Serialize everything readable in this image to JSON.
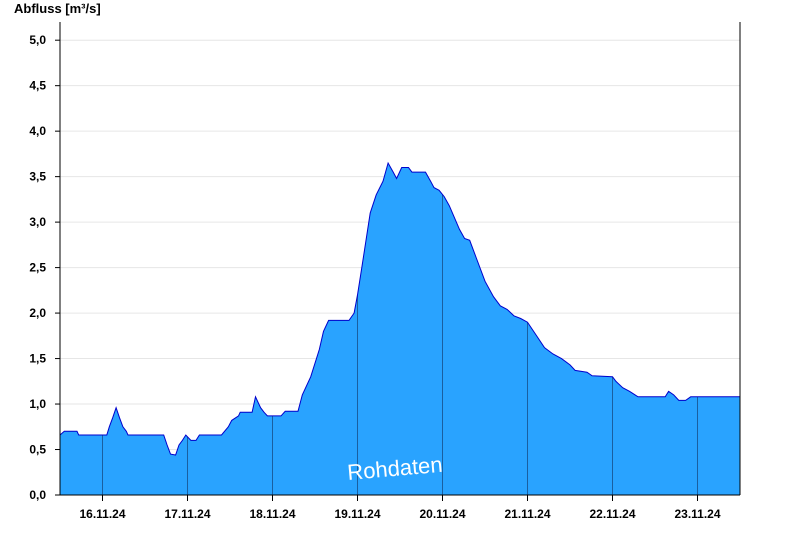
{
  "chart_data": {
    "type": "area",
    "ylabel": "Abfluss [m³/s]",
    "ylim": [
      0,
      5.2
    ],
    "y_ticks": [
      "0,0",
      "0,5",
      "1,0",
      "1,5",
      "2,0",
      "2,5",
      "3,0",
      "3,5",
      "4,0",
      "4,5",
      "5,0"
    ],
    "x_ticks": [
      "16.11.24",
      "17.11.24",
      "18.11.24",
      "19.11.24",
      "20.11.24",
      "21.11.24",
      "22.11.24",
      "23.11.24"
    ],
    "x_range_days": [
      15.5,
      23.5
    ],
    "grid": "horizontal",
    "annotation": "Rohdaten",
    "colors": {
      "fill": "#29a3ff",
      "line": "#0000cc",
      "day_divider": "#1a5fa0",
      "grid": "#e6e6e6"
    },
    "series": [
      {
        "points": [
          [
            15.5,
            0.66
          ],
          [
            15.55,
            0.7
          ],
          [
            15.7,
            0.7
          ],
          [
            15.72,
            0.66
          ],
          [
            16.05,
            0.66
          ],
          [
            16.08,
            0.75
          ],
          [
            16.12,
            0.85
          ],
          [
            16.16,
            0.96
          ],
          [
            16.2,
            0.85
          ],
          [
            16.24,
            0.75
          ],
          [
            16.28,
            0.7
          ],
          [
            16.3,
            0.66
          ],
          [
            16.5,
            0.66
          ],
          [
            16.65,
            0.66
          ],
          [
            16.72,
            0.66
          ],
          [
            16.76,
            0.55
          ],
          [
            16.8,
            0.45
          ],
          [
            16.86,
            0.44
          ],
          [
            16.9,
            0.55
          ],
          [
            16.94,
            0.6
          ],
          [
            16.98,
            0.66
          ],
          [
            17.04,
            0.6
          ],
          [
            17.1,
            0.6
          ],
          [
            17.14,
            0.66
          ],
          [
            17.4,
            0.66
          ],
          [
            17.48,
            0.75
          ],
          [
            17.52,
            0.82
          ],
          [
            17.6,
            0.87
          ],
          [
            17.62,
            0.91
          ],
          [
            17.76,
            0.91
          ],
          [
            17.8,
            1.08
          ],
          [
            17.86,
            0.96
          ],
          [
            17.9,
            0.91
          ],
          [
            17.94,
            0.87
          ],
          [
            18.1,
            0.87
          ],
          [
            18.15,
            0.92
          ],
          [
            18.3,
            0.92
          ],
          [
            18.35,
            1.1
          ],
          [
            18.45,
            1.3
          ],
          [
            18.55,
            1.6
          ],
          [
            18.6,
            1.8
          ],
          [
            18.66,
            1.92
          ],
          [
            18.9,
            1.92
          ],
          [
            18.96,
            2.0
          ],
          [
            19.0,
            2.2
          ],
          [
            19.05,
            2.5
          ],
          [
            19.1,
            2.8
          ],
          [
            19.15,
            3.1
          ],
          [
            19.22,
            3.3
          ],
          [
            19.3,
            3.45
          ],
          [
            19.36,
            3.65
          ],
          [
            19.42,
            3.55
          ],
          [
            19.46,
            3.48
          ],
          [
            19.52,
            3.6
          ],
          [
            19.6,
            3.6
          ],
          [
            19.64,
            3.55
          ],
          [
            19.8,
            3.55
          ],
          [
            19.86,
            3.45
          ],
          [
            19.9,
            3.38
          ],
          [
            19.96,
            3.35
          ],
          [
            20.02,
            3.28
          ],
          [
            20.08,
            3.18
          ],
          [
            20.14,
            3.05
          ],
          [
            20.2,
            2.92
          ],
          [
            20.26,
            2.82
          ],
          [
            20.32,
            2.8
          ],
          [
            20.4,
            2.6
          ],
          [
            20.5,
            2.35
          ],
          [
            20.6,
            2.18
          ],
          [
            20.68,
            2.08
          ],
          [
            20.76,
            2.04
          ],
          [
            20.84,
            1.97
          ],
          [
            20.92,
            1.94
          ],
          [
            21.0,
            1.9
          ],
          [
            21.1,
            1.76
          ],
          [
            21.2,
            1.62
          ],
          [
            21.3,
            1.55
          ],
          [
            21.4,
            1.5
          ],
          [
            21.5,
            1.43
          ],
          [
            21.56,
            1.37
          ],
          [
            21.7,
            1.35
          ],
          [
            21.76,
            1.31
          ],
          [
            22.0,
            1.3
          ],
          [
            22.04,
            1.25
          ],
          [
            22.12,
            1.18
          ],
          [
            22.2,
            1.14
          ],
          [
            22.3,
            1.08
          ],
          [
            22.62,
            1.08
          ],
          [
            22.66,
            1.14
          ],
          [
            22.72,
            1.1
          ],
          [
            22.78,
            1.04
          ],
          [
            22.86,
            1.04
          ],
          [
            22.92,
            1.08
          ],
          [
            23.0,
            1.08
          ],
          [
            23.5,
            1.08
          ]
        ]
      }
    ]
  }
}
